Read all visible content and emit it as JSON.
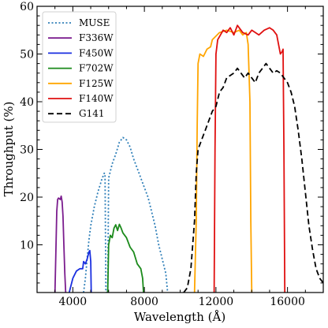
{
  "chart_data": {
    "type": "line",
    "xlabel": "Wavelength (Å)",
    "ylabel": "Throughput (%)",
    "xlim": [
      2000,
      18000
    ],
    "ylim": [
      0,
      60
    ],
    "x_ticks": [
      4000,
      8000,
      12000,
      16000
    ],
    "x_tick_labels": [
      "4000",
      "8000",
      "12000",
      "16000"
    ],
    "y_ticks": [
      10,
      20,
      30,
      40,
      50,
      60
    ],
    "y_tick_labels": [
      "10",
      "20",
      "30",
      "40",
      "50",
      "60"
    ],
    "grid": false,
    "legend_position": "top-left",
    "series": [
      {
        "name": "MUSE",
        "color": "#2f7fb8",
        "style": "dotted",
        "points": [
          [
            4600,
            0
          ],
          [
            4700,
            3
          ],
          [
            4800,
            7
          ],
          [
            4900,
            11
          ],
          [
            5000,
            14
          ],
          [
            5200,
            18
          ],
          [
            5400,
            21
          ],
          [
            5600,
            23.5
          ],
          [
            5750,
            25
          ],
          [
            5800,
            25
          ],
          [
            5850,
            0
          ],
          [
            5950,
            0
          ],
          [
            6000,
            24
          ],
          [
            6200,
            27
          ],
          [
            6400,
            29
          ],
          [
            6600,
            31.5
          ],
          [
            6800,
            32.5
          ],
          [
            7000,
            32
          ],
          [
            7200,
            30.5
          ],
          [
            7400,
            28
          ],
          [
            7600,
            26
          ],
          [
            7800,
            24
          ],
          [
            8000,
            22
          ],
          [
            8200,
            20
          ],
          [
            8400,
            17
          ],
          [
            8600,
            14
          ],
          [
            8800,
            10
          ],
          [
            9000,
            7
          ],
          [
            9200,
            4
          ],
          [
            9300,
            0
          ]
        ]
      },
      {
        "name": "F336W",
        "color": "#7b1d8e",
        "style": "solid",
        "points": [
          [
            3000,
            0
          ],
          [
            3050,
            8
          ],
          [
            3100,
            17
          ],
          [
            3150,
            19.5
          ],
          [
            3200,
            19.8
          ],
          [
            3300,
            19.5
          ],
          [
            3350,
            20.2
          ],
          [
            3400,
            19
          ],
          [
            3450,
            16
          ],
          [
            3500,
            10
          ],
          [
            3550,
            4
          ],
          [
            3600,
            0
          ]
        ]
      },
      {
        "name": "F450W",
        "color": "#1a2fe0",
        "style": "solid",
        "points": [
          [
            3800,
            0
          ],
          [
            3900,
            1.5
          ],
          [
            4000,
            3
          ],
          [
            4200,
            4.5
          ],
          [
            4400,
            5
          ],
          [
            4550,
            5
          ],
          [
            4600,
            6.5
          ],
          [
            4700,
            6
          ],
          [
            4800,
            7
          ],
          [
            4900,
            8.5
          ],
          [
            4950,
            8.8
          ],
          [
            5000,
            6.5
          ],
          [
            5030,
            0
          ]
        ]
      },
      {
        "name": "F702W",
        "color": "#1b8a1b",
        "style": "solid",
        "points": [
          [
            5950,
            0
          ],
          [
            6000,
            10
          ],
          [
            6100,
            12
          ],
          [
            6200,
            11.5
          ],
          [
            6300,
            13.5
          ],
          [
            6400,
            14.2
          ],
          [
            6500,
            13
          ],
          [
            6600,
            14.3
          ],
          [
            6700,
            13.5
          ],
          [
            6800,
            12.5
          ],
          [
            7000,
            11.5
          ],
          [
            7200,
            9.5
          ],
          [
            7400,
            8.5
          ],
          [
            7600,
            6
          ],
          [
            7800,
            5
          ],
          [
            7900,
            3
          ],
          [
            7950,
            0
          ]
        ]
      },
      {
        "name": "F125W",
        "color": "#ffa500",
        "style": "solid",
        "points": [
          [
            10800,
            0
          ],
          [
            10900,
            15
          ],
          [
            10950,
            35
          ],
          [
            11000,
            48
          ],
          [
            11100,
            50
          ],
          [
            11300,
            49.5
          ],
          [
            11500,
            51
          ],
          [
            11700,
            51.5
          ],
          [
            11800,
            53
          ],
          [
            12200,
            54.5
          ],
          [
            12600,
            55
          ],
          [
            13000,
            54.5
          ],
          [
            13300,
            55
          ],
          [
            13500,
            54
          ],
          [
            13700,
            54.5
          ],
          [
            13800,
            52
          ],
          [
            13900,
            40
          ],
          [
            13950,
            15
          ],
          [
            14000,
            0
          ]
        ]
      },
      {
        "name": "F140W",
        "color": "#e01010",
        "style": "solid",
        "points": [
          [
            11900,
            0
          ],
          [
            11950,
            30
          ],
          [
            12000,
            50
          ],
          [
            12100,
            53
          ],
          [
            12400,
            55
          ],
          [
            12600,
            54.5
          ],
          [
            12800,
            55.5
          ],
          [
            13000,
            54
          ],
          [
            13200,
            56
          ],
          [
            13500,
            54.5
          ],
          [
            13800,
            54
          ],
          [
            14000,
            55
          ],
          [
            14400,
            54
          ],
          [
            14700,
            55
          ],
          [
            15000,
            55.5
          ],
          [
            15200,
            55
          ],
          [
            15400,
            54
          ],
          [
            15500,
            52
          ],
          [
            15600,
            50
          ],
          [
            15700,
            50.5
          ],
          [
            15750,
            51
          ],
          [
            15800,
            30
          ],
          [
            15850,
            0
          ]
        ]
      },
      {
        "name": "G141",
        "color": "#000000",
        "style": "dashed",
        "points": [
          [
            10200,
            0
          ],
          [
            10400,
            1
          ],
          [
            10600,
            5
          ],
          [
            10800,
            15
          ],
          [
            10900,
            25
          ],
          [
            11000,
            30
          ],
          [
            11200,
            32
          ],
          [
            11400,
            34
          ],
          [
            11600,
            36
          ],
          [
            11800,
            38
          ],
          [
            12000,
            39
          ],
          [
            12200,
            42
          ],
          [
            12400,
            43
          ],
          [
            12600,
            45
          ],
          [
            12800,
            45.5
          ],
          [
            13000,
            46
          ],
          [
            13200,
            47
          ],
          [
            13400,
            46
          ],
          [
            13600,
            45
          ],
          [
            13800,
            46
          ],
          [
            14000,
            45
          ],
          [
            14200,
            44
          ],
          [
            14400,
            46
          ],
          [
            14600,
            47
          ],
          [
            14800,
            48
          ],
          [
            15000,
            47
          ],
          [
            15200,
            46
          ],
          [
            15400,
            46.5
          ],
          [
            15600,
            46
          ],
          [
            15800,
            45
          ],
          [
            16000,
            44
          ],
          [
            16200,
            42
          ],
          [
            16400,
            39
          ],
          [
            16600,
            34
          ],
          [
            16800,
            28
          ],
          [
            17000,
            21
          ],
          [
            17200,
            14
          ],
          [
            17400,
            9
          ],
          [
            17600,
            5
          ],
          [
            17800,
            3
          ],
          [
            18000,
            2
          ]
        ]
      }
    ]
  }
}
